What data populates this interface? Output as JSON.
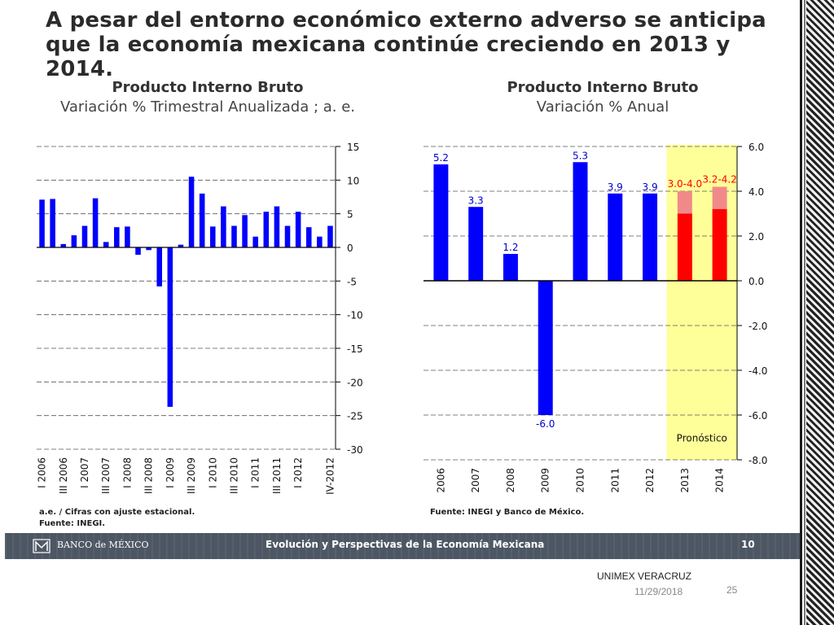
{
  "slide_title": "A pesar del entorno económico externo adverso se anticipa que la economía mexicana continúe creciendo en 2013 y 2014.",
  "footer": {
    "bank": "BANCO de MÉXICO",
    "center": "Evolución y Perspectivas de la Economía Mexicana",
    "page": "10"
  },
  "below": {
    "org": "UNIMEX VERACRUZ",
    "date": "11/29/2018",
    "slide_number": "25"
  },
  "chart_data": [
    {
      "type": "bar",
      "title": "Producto Interno Bruto",
      "subtitle": "Variación % Trimestral Anualizada ; a. e.",
      "colors": {
        "bars": "#0000ff"
      },
      "categories": [
        "I 2006",
        "II 2006",
        "III 2006",
        "IV 2006",
        "I 2007",
        "II 2007",
        "III 2007",
        "IV 2007",
        "I 2008",
        "II 2008",
        "III 2008",
        "IV 2008",
        "I 2009",
        "II 2009",
        "III 2009",
        "IV 2009",
        "I 2010",
        "II 2010",
        "III 2010",
        "IV 2010",
        "I 2011",
        "II 2011",
        "III 2011",
        "IV 2011",
        "I 2012",
        "II 2012",
        "III 2012",
        "IV 2012"
      ],
      "tick_labels": [
        "I 2006",
        "III 2006",
        "I 2007",
        "III 2007",
        "I 2008",
        "III 2008",
        "I 2009",
        "III 2009",
        "I 2010",
        "III 2010",
        "I 2011",
        "III 2011",
        "I 2012",
        "IV-2012"
      ],
      "values": [
        7.1,
        7.2,
        0.5,
        1.8,
        3.2,
        7.3,
        0.8,
        3.0,
        3.1,
        -1.1,
        -0.4,
        -5.8,
        -23.7,
        0.4,
        10.5,
        8.0,
        3.1,
        6.1,
        3.2,
        4.8,
        1.6,
        5.3,
        6.1,
        3.2,
        5.3,
        3.0,
        1.6,
        3.2
      ],
      "ylim": [
        -30,
        15
      ],
      "yticks": [
        "15",
        "10",
        "5",
        "0",
        "-5",
        "-10",
        "-15",
        "-20",
        "-25",
        "-30"
      ],
      "notes": [
        "a.e. / Cifras con ajuste estacional.",
        "Fuente: INEGI."
      ]
    },
    {
      "type": "bar",
      "title": "Producto Interno Bruto",
      "subtitle": "Variación % Anual",
      "colors": {
        "bars": "#0000ff",
        "forecast": "#ff0000",
        "forecast_range": "#f08a8a",
        "forecast_band": "#ffff99"
      },
      "categories": [
        "2006",
        "2007",
        "2008",
        "2009",
        "2010",
        "2011",
        "2012",
        "2013",
        "2014"
      ],
      "values": [
        5.2,
        3.3,
        1.2,
        -6.0,
        5.3,
        3.9,
        3.9,
        3.0,
        3.2
      ],
      "forecast_high": [
        null,
        null,
        null,
        null,
        null,
        null,
        null,
        4.0,
        4.2
      ],
      "data_labels": [
        "5.2",
        "3.3",
        "1.2",
        "-6.0",
        "5.3",
        "3.9",
        "3.9",
        "3.0-4.0",
        "3.2-4.2"
      ],
      "ylim": [
        -8.0,
        6.0
      ],
      "yticks": [
        "6.0",
        "4.0",
        "2.0",
        "0.0",
        "-2.0",
        "-4.0",
        "-6.0",
        "-8.0"
      ],
      "forecast_label": "Pronóstico",
      "notes": [
        "Fuente: INEGI y Banco de México."
      ]
    }
  ]
}
